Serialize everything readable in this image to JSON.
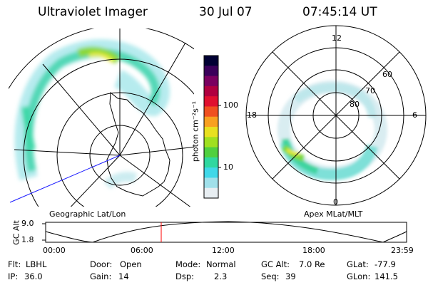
{
  "header": {
    "instrument": "Ultraviolet Imager",
    "date": "30 Jul 07",
    "time": "07:45:14 UT"
  },
  "left_panel": {
    "caption": "Geographic Lat/Lon"
  },
  "right_panel": {
    "caption": "Apex MLat/MLT",
    "mlt_labels": {
      "top": "12",
      "right": "6",
      "bottom": "0",
      "left": "18"
    },
    "mlat_labels": [
      "60",
      "70",
      "80"
    ]
  },
  "colorbar": {
    "unit_label": "photon cm⁻²s⁻¹",
    "ticks": [
      "100",
      "10"
    ],
    "colors": [
      "#000033",
      "#3a005a",
      "#7a0060",
      "#b00040",
      "#e01030",
      "#f05020",
      "#f8a020",
      "#e8e020",
      "#a0e020",
      "#50d040",
      "#30d8a0",
      "#40d8e8",
      "#a0e0ea",
      "#e8eef2"
    ]
  },
  "timeline": {
    "ylabel": "GC Alt",
    "y_ticks": [
      "9.0",
      "1.8"
    ],
    "x_ticks": [
      "00:00",
      "06:00",
      "12:00",
      "18:00",
      "23:59"
    ],
    "current_marker_time": "07:45",
    "marker_color": "#ff0000"
  },
  "info": {
    "row1": [
      {
        "label": "Flt:",
        "value": "LBHL"
      },
      {
        "label": "Door:",
        "value": "Open"
      },
      {
        "label": "Mode:",
        "value": "Normal"
      },
      {
        "label": "GC Alt:",
        "value": "7.0 Re"
      },
      {
        "label": "GLat:",
        "value": "-77.9"
      }
    ],
    "row2": [
      {
        "label": "IP:",
        "value": "36.0"
      },
      {
        "label": "Gain:",
        "value": "14"
      },
      {
        "label": "Dsp:",
        "value": "2.3"
      },
      {
        "label": "Seq:",
        "value": "39"
      },
      {
        "label": "GLon:",
        "value": "141.5"
      }
    ]
  }
}
